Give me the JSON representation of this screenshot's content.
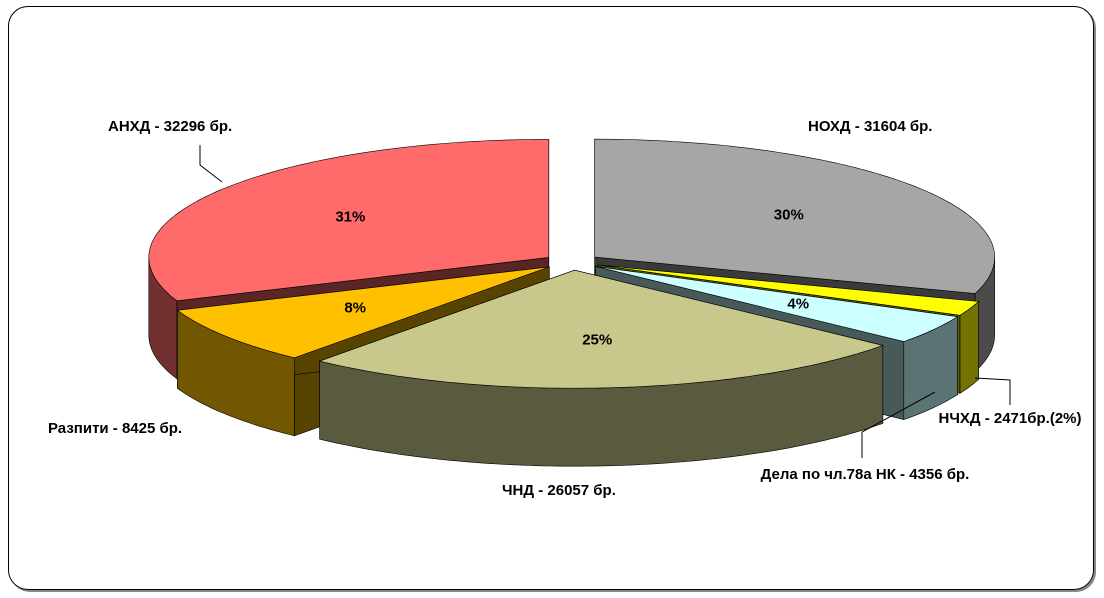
{
  "chart_data": {
    "type": "pie",
    "categories": [
      "НОХД - 31604 бр.",
      "НЧХД - 2471бр.(2%)",
      "Дела по чл.78а НК - 4356 бр.",
      "ЧНД - 26057 бр.",
      "Разпити - 8425 бр.",
      "АНХД - 32296 бр."
    ],
    "values": [
      30,
      2,
      4,
      25,
      8,
      31
    ],
    "value_labels": [
      "30%",
      null,
      "4%",
      "25%",
      "8%",
      "31%"
    ],
    "colors": [
      "#a6a6a6",
      "#ffff00",
      "#ccffff",
      "#c8c88c",
      "#ffc000",
      "#ff6a6a"
    ]
  }
}
